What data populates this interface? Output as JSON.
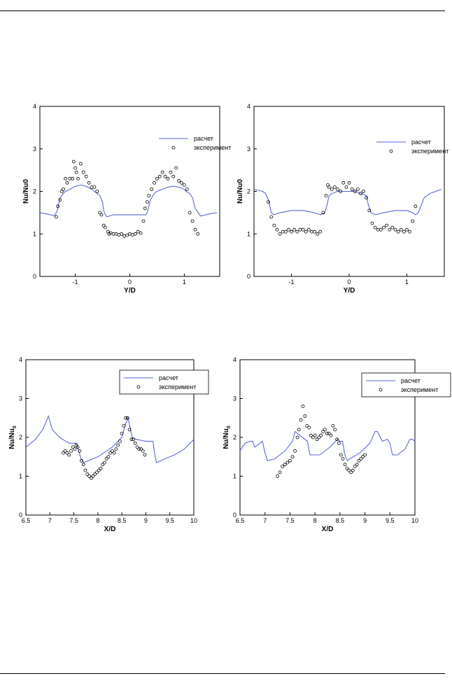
{
  "legend": {
    "calc": "расчет",
    "exp": "эксперимент"
  },
  "colors": {
    "calc_line": "#5a6ad6",
    "exp_marker": "#000000"
  },
  "chart_data": [
    {
      "type": "line",
      "xlabel": "Y/D",
      "ylabel": "Nu/Nu0",
      "xlim": [
        -1.65,
        1.65
      ],
      "ylim": [
        0,
        4
      ],
      "xticks": [
        -1,
        0,
        1
      ],
      "yticks": [
        0,
        1,
        2,
        3,
        4
      ],
      "legend_box": false,
      "series": [
        {
          "name": "расчет",
          "kind": "line",
          "x": [
            -1.65,
            -1.45,
            -1.38,
            -1.33,
            -1.28,
            -1.2,
            -1.1,
            -1.0,
            -0.9,
            -0.8,
            -0.7,
            -0.6,
            -0.55,
            -0.5,
            -0.48,
            -0.45,
            -0.42,
            -0.3,
            -0.15,
            0,
            0.15,
            0.3,
            0.33,
            0.38,
            0.45,
            0.5,
            0.6,
            0.7,
            0.8,
            0.9,
            1.0,
            1.05,
            1.1,
            1.15,
            1.2,
            1.3,
            1.4,
            1.5,
            1.6
          ],
          "y": [
            1.5,
            1.45,
            1.42,
            1.55,
            1.85,
            1.98,
            2.05,
            2.12,
            2.15,
            2.12,
            2.05,
            1.95,
            1.9,
            1.75,
            1.55,
            1.45,
            1.4,
            1.45,
            1.45,
            1.45,
            1.45,
            1.45,
            1.55,
            1.8,
            1.95,
            2.0,
            2.05,
            2.1,
            2.12,
            2.1,
            2.05,
            1.98,
            1.95,
            1.85,
            1.6,
            1.42,
            1.45,
            1.48,
            1.5
          ]
        },
        {
          "name": "эксперимент",
          "kind": "scatter",
          "x": [
            -1.35,
            -1.32,
            -1.28,
            -1.25,
            -1.22,
            -1.18,
            -1.15,
            -1.1,
            -1.05,
            -1.03,
            -1.0,
            -0.98,
            -0.95,
            -0.9,
            -0.85,
            -0.8,
            -0.75,
            -0.7,
            -0.65,
            -0.6,
            -0.55,
            -0.52,
            -0.48,
            -0.45,
            -0.4,
            -0.38,
            -0.35,
            -0.3,
            -0.25,
            -0.2,
            -0.15,
            -0.1,
            -0.05,
            0,
            0.05,
            0.1,
            0.15,
            0.2,
            0.25,
            0.28,
            0.32,
            0.35,
            0.4,
            0.45,
            0.5,
            0.55,
            0.6,
            0.65,
            0.7,
            0.75,
            0.8,
            0.85,
            0.9,
            0.95,
            1.0,
            1.05,
            1.1,
            1.15,
            1.2,
            1.25
          ],
          "y": [
            1.4,
            1.65,
            1.8,
            2.0,
            2.05,
            2.3,
            2.2,
            2.3,
            2.3,
            2.7,
            2.55,
            2.45,
            2.3,
            2.65,
            2.45,
            2.35,
            2.2,
            2.1,
            2.1,
            2.0,
            1.5,
            1.45,
            1.2,
            1.15,
            1.05,
            1.0,
            1.02,
            1.0,
            1.0,
            0.98,
            1.0,
            0.95,
            0.97,
            1.0,
            0.98,
            1.0,
            1.05,
            1.02,
            1.3,
            1.6,
            1.75,
            1.9,
            2.05,
            2.2,
            2.3,
            2.35,
            2.45,
            2.35,
            2.3,
            2.45,
            2.35,
            2.55,
            2.25,
            2.2,
            2.15,
            2.05,
            1.5,
            1.3,
            1.1,
            1.0
          ]
        }
      ]
    },
    {
      "type": "line",
      "xlabel": "Y/D",
      "ylabel": "Nu/Nu0",
      "xlim": [
        -1.65,
        1.65
      ],
      "ylim": [
        0,
        4
      ],
      "xticks": [
        -1,
        0,
        1
      ],
      "yticks": [
        0,
        1,
        2,
        3,
        4
      ],
      "legend_box": false,
      "series": [
        {
          "name": "расчет",
          "kind": "line",
          "x": [
            -1.65,
            -1.5,
            -1.45,
            -1.4,
            -1.35,
            -1.3,
            -1.2,
            -1.0,
            -0.8,
            -0.6,
            -0.5,
            -0.42,
            -0.38,
            -0.35,
            -0.3,
            -0.2,
            -0.1,
            0,
            0.1,
            0.2,
            0.3,
            0.33,
            0.38,
            0.45,
            0.6,
            0.8,
            1.0,
            1.1,
            1.15,
            1.2,
            1.3,
            1.4,
            1.5,
            1.6
          ],
          "y": [
            2.05,
            2.0,
            1.95,
            1.8,
            1.5,
            1.45,
            1.5,
            1.55,
            1.55,
            1.5,
            1.45,
            1.5,
            1.7,
            1.9,
            1.95,
            2.0,
            2.0,
            2.0,
            2.0,
            1.95,
            1.9,
            1.7,
            1.5,
            1.45,
            1.5,
            1.55,
            1.55,
            1.5,
            1.45,
            1.5,
            1.85,
            1.95,
            2.0,
            2.05
          ]
        },
        {
          "name": "эксперимент",
          "kind": "scatter",
          "x": [
            -1.4,
            -1.35,
            -1.3,
            -1.25,
            -1.2,
            -1.15,
            -1.1,
            -1.05,
            -1.0,
            -0.95,
            -0.9,
            -0.85,
            -0.8,
            -0.75,
            -0.7,
            -0.65,
            -0.6,
            -0.55,
            -0.5,
            -0.45,
            -0.4,
            -0.37,
            -0.35,
            -0.3,
            -0.25,
            -0.2,
            -0.15,
            -0.1,
            -0.05,
            0,
            0.05,
            0.1,
            0.15,
            0.2,
            0.25,
            0.3,
            0.35,
            0.4,
            0.45,
            0.5,
            0.55,
            0.6,
            0.65,
            0.7,
            0.75,
            0.8,
            0.85,
            0.9,
            0.95,
            1.0,
            1.05,
            1.1,
            1.15
          ],
          "y": [
            1.75,
            1.4,
            1.2,
            1.1,
            1.0,
            1.05,
            1.05,
            1.1,
            1.05,
            1.1,
            1.05,
            1.1,
            1.1,
            1.05,
            1.1,
            1.05,
            1.05,
            1.0,
            1.05,
            1.5,
            1.9,
            2.15,
            2.1,
            2.05,
            2.1,
            2.05,
            2.0,
            2.2,
            2.1,
            2.2,
            2.05,
            2.0,
            2.05,
            1.95,
            2.0,
            1.85,
            1.55,
            1.25,
            1.15,
            1.1,
            1.1,
            1.15,
            1.2,
            1.1,
            1.15,
            1.1,
            1.05,
            1.1,
            1.05,
            1.1,
            1.05,
            1.3,
            1.65
          ]
        }
      ]
    },
    {
      "type": "line",
      "xlabel": "X/D",
      "ylabel": "Nu/Nu",
      "ylabel_sub": "0",
      "xlim": [
        6.5,
        10
      ],
      "ylim": [
        0,
        4
      ],
      "xticks": [
        6.5,
        7,
        7.5,
        8,
        8.5,
        9,
        9.5,
        10
      ],
      "xticklabels": [
        "6.5",
        "7",
        "7.5",
        "8",
        "8.5",
        "9",
        "9.5",
        "10"
      ],
      "yticks": [
        0,
        1,
        2,
        3,
        4
      ],
      "legend_box": true,
      "series": [
        {
          "name": "расчет",
          "kind": "line",
          "x": [
            6.5,
            6.7,
            6.85,
            6.92,
            6.97,
            7.05,
            7.2,
            7.4,
            7.55,
            7.6,
            7.65,
            7.7,
            8.0,
            8.3,
            8.5,
            8.58,
            8.63,
            8.68,
            8.72,
            8.8,
            9.0,
            9.15,
            9.18,
            9.22,
            9.4,
            9.6,
            9.8,
            10.0
          ],
          "y": [
            1.75,
            1.95,
            2.2,
            2.4,
            2.55,
            2.2,
            2.0,
            1.85,
            1.85,
            1.65,
            1.45,
            1.35,
            1.5,
            1.75,
            2.0,
            2.35,
            2.5,
            2.2,
            2.0,
            1.95,
            1.9,
            1.9,
            1.6,
            1.35,
            1.45,
            1.55,
            1.7,
            1.95
          ]
        },
        {
          "name": "эксперимент",
          "kind": "scatter",
          "x": [
            7.28,
            7.32,
            7.36,
            7.4,
            7.44,
            7.48,
            7.52,
            7.55,
            7.58,
            7.62,
            7.66,
            7.7,
            7.74,
            7.78,
            7.82,
            7.86,
            7.9,
            7.94,
            7.98,
            8.02,
            8.06,
            8.1,
            8.14,
            8.18,
            8.22,
            8.26,
            8.3,
            8.34,
            8.38,
            8.42,
            8.46,
            8.5,
            8.54,
            8.58,
            8.62,
            8.66,
            8.7,
            8.74,
            8.78,
            8.82,
            8.86,
            8.9,
            8.94,
            8.98
          ],
          "y": [
            1.6,
            1.65,
            1.6,
            1.55,
            1.65,
            1.75,
            1.7,
            1.8,
            1.75,
            1.65,
            1.4,
            1.3,
            1.15,
            1.05,
            1.0,
            0.95,
            1.0,
            1.05,
            1.1,
            1.15,
            1.2,
            1.3,
            1.35,
            1.45,
            1.5,
            1.6,
            1.65,
            1.6,
            1.7,
            1.8,
            1.9,
            2.1,
            2.3,
            2.5,
            2.5,
            2.2,
            1.95,
            1.95,
            1.85,
            1.75,
            1.7,
            1.7,
            1.65,
            1.55
          ]
        }
      ]
    },
    {
      "type": "line",
      "xlabel": "X/D",
      "ylabel": "Nu/Nu",
      "ylabel_sub": "0",
      "xlim": [
        6.5,
        10
      ],
      "ylim": [
        0,
        4
      ],
      "xticks": [
        6.5,
        7,
        7.5,
        8,
        8.5,
        9,
        9.5,
        10
      ],
      "xticklabels": [
        "6.5",
        "7",
        "7.5",
        "8",
        "8.5",
        "9",
        "9.5",
        "10"
      ],
      "yticks": [
        0,
        1,
        2,
        3,
        4
      ],
      "legend_box": true,
      "series": [
        {
          "name": "расчет",
          "kind": "line",
          "x": [
            6.5,
            6.6,
            6.7,
            6.75,
            6.8,
            6.85,
            6.95,
            7.0,
            7.05,
            7.2,
            7.4,
            7.55,
            7.6,
            7.65,
            7.8,
            7.85,
            7.9,
            8.1,
            8.3,
            8.45,
            8.5,
            8.55,
            8.6,
            8.65,
            8.7,
            8.9,
            9.1,
            9.2,
            9.25,
            9.35,
            9.45,
            9.5,
            9.55,
            9.65,
            9.8,
            9.9,
            9.95,
            10.0
          ],
          "y": [
            1.65,
            1.85,
            1.9,
            1.9,
            1.75,
            1.8,
            1.9,
            1.6,
            1.4,
            1.45,
            1.65,
            1.9,
            2.15,
            2.1,
            1.95,
            1.9,
            1.55,
            1.55,
            1.75,
            1.95,
            1.9,
            1.9,
            1.55,
            1.4,
            1.45,
            1.6,
            1.85,
            2.15,
            2.15,
            1.9,
            1.95,
            1.85,
            1.55,
            1.55,
            1.7,
            1.95,
            1.95,
            1.9
          ]
        },
        {
          "name": "эксперимент",
          "kind": "scatter",
          "x": [
            7.25,
            7.3,
            7.35,
            7.4,
            7.45,
            7.5,
            7.55,
            7.6,
            7.65,
            7.68,
            7.72,
            7.76,
            7.8,
            7.84,
            7.88,
            7.92,
            7.96,
            8.0,
            8.04,
            8.08,
            8.12,
            8.16,
            8.2,
            8.24,
            8.28,
            8.32,
            8.36,
            8.4,
            8.44,
            8.48,
            8.52,
            8.56,
            8.6,
            8.64,
            8.68,
            8.72,
            8.76,
            8.8,
            8.84,
            8.88,
            8.92,
            8.96,
            9.0
          ],
          "y": [
            1.0,
            1.1,
            1.25,
            1.3,
            1.35,
            1.4,
            1.5,
            1.65,
            2.0,
            2.2,
            2.45,
            2.8,
            2.55,
            2.3,
            2.25,
            2.05,
            2.0,
            2.05,
            1.95,
            2.0,
            2.05,
            2.15,
            2.2,
            2.1,
            2.1,
            2.05,
            2.3,
            2.2,
            1.95,
            1.85,
            1.55,
            1.45,
            1.3,
            1.2,
            1.15,
            1.1,
            1.15,
            1.25,
            1.3,
            1.4,
            1.45,
            1.5,
            1.55
          ]
        }
      ]
    }
  ]
}
